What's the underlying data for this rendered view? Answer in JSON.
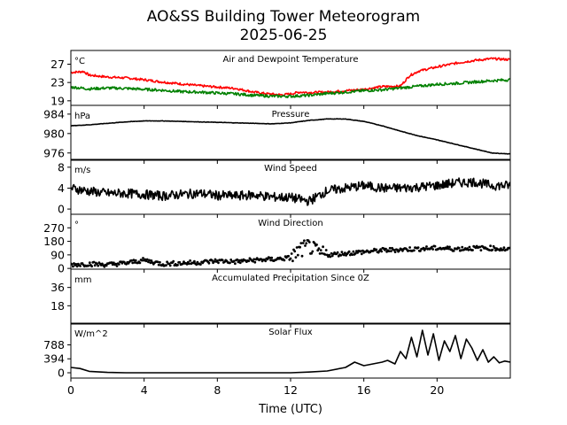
{
  "figure": {
    "title_line1": "AO&SS Building Tower Meteorogram",
    "title_line2": "2025-06-25",
    "xlabel": "Time (UTC)"
  },
  "chart_data": [
    {
      "type": "line",
      "title": "Air and Dewpoint Temperature",
      "unit": "°C",
      "ylim": [
        18,
        30
      ],
      "yticks": [
        19,
        23,
        27
      ],
      "series": [
        {
          "color": "#ff0000",
          "noise": 0.25,
          "x": [
            0,
            0.7,
            1,
            2,
            3,
            4,
            5,
            6,
            7,
            8,
            9,
            10,
            10.8,
            11.5,
            12,
            12.5,
            13,
            14,
            15,
            16,
            17,
            18,
            18.5,
            19,
            20,
            21,
            22,
            23,
            24
          ],
          "y": [
            25.2,
            25.4,
            24.6,
            24.2,
            24,
            23.6,
            23.1,
            22.7,
            22.3,
            22,
            21.7,
            20.9,
            20.5,
            20.3,
            20.5,
            20.9,
            20.8,
            20.9,
            21.2,
            21.5,
            22.1,
            22.2,
            24.5,
            25.5,
            26.4,
            27.2,
            27.8,
            28.2,
            28
          ]
        },
        {
          "color": "#008000",
          "noise": 0.3,
          "x": [
            0,
            1,
            2,
            3,
            4,
            5,
            6,
            7,
            8,
            9,
            10,
            11,
            12,
            13,
            14,
            15,
            16,
            17,
            18,
            19,
            20,
            21,
            22,
            23,
            24
          ],
          "y": [
            22,
            21.6,
            21.8,
            21.7,
            21.5,
            21.3,
            21,
            20.9,
            20.7,
            20.5,
            20.2,
            20,
            20,
            20.2,
            20.6,
            20.9,
            21.2,
            21.4,
            21.8,
            22.2,
            22.6,
            22.8,
            23.1,
            23.4,
            23.6
          ]
        }
      ]
    },
    {
      "type": "line",
      "title": "Pressure",
      "unit": "hPa",
      "ylim": [
        974.5,
        985.8
      ],
      "yticks": [
        976,
        980,
        984
      ],
      "series": [
        {
          "color": "#000000",
          "noise": 0.04,
          "x": [
            0,
            1,
            2,
            3,
            4,
            5,
            6,
            7,
            8,
            9,
            10,
            11,
            12,
            13,
            14,
            15,
            16,
            17,
            18,
            19,
            20,
            21,
            22,
            23,
            23.5,
            24
          ],
          "y": [
            981.6,
            981.8,
            982.1,
            982.4,
            982.6,
            982.6,
            982.5,
            982.4,
            982.3,
            982.2,
            982.1,
            982,
            982.2,
            982.7,
            983,
            983,
            982.5,
            981.6,
            980.5,
            979.5,
            978.7,
            977.8,
            976.9,
            976,
            975.9,
            975.8
          ]
        }
      ]
    },
    {
      "type": "line",
      "title": "Wind Speed",
      "unit": "m/s",
      "ylim": [
        -1,
        9.5
      ],
      "yticks": [
        0,
        4,
        8
      ],
      "series": [
        {
          "color": "#000000",
          "noise": 0.9,
          "x": [
            0,
            1,
            2,
            3,
            4,
            5,
            6,
            7,
            8,
            9,
            10,
            11,
            12,
            13,
            14,
            15,
            16,
            17,
            18,
            19,
            20,
            21,
            22,
            23,
            24
          ],
          "y": [
            4,
            3.4,
            3,
            3,
            2.8,
            2.5,
            2.8,
            3,
            2.6,
            2.5,
            2.7,
            2.3,
            2.2,
            1.5,
            3.5,
            4,
            4.5,
            4,
            4,
            4.2,
            4.5,
            5,
            5.2,
            4.5,
            4.5
          ]
        }
      ]
    },
    {
      "type": "scatter",
      "title": "Wind Direction",
      "unit": "°",
      "ylim": [
        -5,
        360
      ],
      "yticks": [
        0,
        90,
        180,
        270
      ],
      "series": [
        {
          "color": "#000000",
          "noise": 15,
          "x": [
            0,
            1,
            2,
            3,
            4,
            5,
            6,
            7,
            8,
            9,
            10,
            11,
            12,
            12.5,
            13,
            13.5,
            14,
            15,
            16,
            17,
            18,
            19,
            20,
            21,
            22,
            23,
            24
          ],
          "y": [
            25,
            30,
            25,
            35,
            55,
            30,
            35,
            40,
            50,
            45,
            55,
            60,
            70,
            120,
            150,
            100,
            90,
            100,
            110,
            120,
            125,
            130,
            135,
            130,
            135,
            135,
            125
          ]
        }
      ]
    },
    {
      "type": "line",
      "title": "Accumulated Precipitation Since 0Z",
      "unit": "mm",
      "ylim": [
        0,
        54
      ],
      "yticks": [
        18,
        36
      ],
      "series": [
        {
          "color": "#000000",
          "noise": 0,
          "x": [
            0,
            24
          ],
          "y": [
            0,
            0
          ]
        }
      ]
    },
    {
      "type": "line",
      "title": "Solar Flux",
      "unit": "W/m^2",
      "ylim": [
        -150,
        1400
      ],
      "yticks": [
        0,
        394,
        788
      ],
      "series": [
        {
          "color": "#000000",
          "noise": 0,
          "x": [
            0,
            0.5,
            1,
            2,
            3,
            4,
            5,
            6,
            7,
            8,
            9,
            10,
            11,
            12,
            13,
            14,
            15,
            15.5,
            16,
            16.5,
            17,
            17.3,
            17.7,
            18,
            18.3,
            18.6,
            18.9,
            19.2,
            19.5,
            19.8,
            20.1,
            20.4,
            20.7,
            21,
            21.3,
            21.6,
            21.9,
            22.2,
            22.5,
            22.8,
            23.1,
            23.4,
            23.7,
            24
          ],
          "y": [
            150,
            120,
            40,
            10,
            0,
            0,
            0,
            0,
            0,
            0,
            0,
            0,
            0,
            0,
            20,
            50,
            150,
            300,
            200,
            250,
            300,
            350,
            250,
            600,
            400,
            1000,
            450,
            1200,
            500,
            1100,
            350,
            900,
            600,
            1050,
            400,
            950,
            700,
            350,
            650,
            300,
            450,
            280,
            330,
            300
          ]
        }
      ]
    }
  ]
}
